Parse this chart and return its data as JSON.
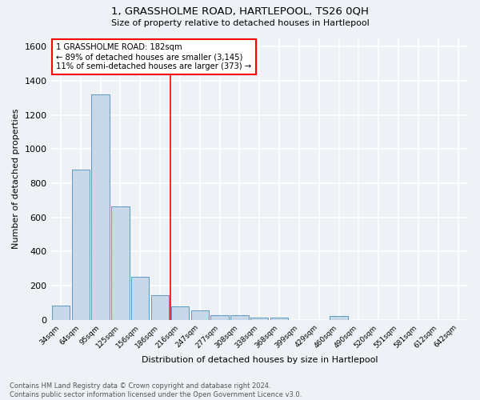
{
  "title": "1, GRASSHOLME ROAD, HARTLEPOOL, TS26 0QH",
  "subtitle": "Size of property relative to detached houses in Hartlepool",
  "xlabel": "Distribution of detached houses by size in Hartlepool",
  "ylabel": "Number of detached properties",
  "bar_labels": [
    "34sqm",
    "64sqm",
    "95sqm",
    "125sqm",
    "156sqm",
    "186sqm",
    "216sqm",
    "247sqm",
    "277sqm",
    "308sqm",
    "338sqm",
    "368sqm",
    "399sqm",
    "429sqm",
    "460sqm",
    "490sqm",
    "520sqm",
    "551sqm",
    "581sqm",
    "612sqm",
    "642sqm"
  ],
  "bar_values": [
    85,
    880,
    1320,
    665,
    250,
    145,
    80,
    55,
    25,
    25,
    15,
    15,
    0,
    0,
    20,
    0,
    0,
    0,
    0,
    0,
    0
  ],
  "bar_color": "#c8d8e8",
  "bar_edge_color": "#5a9abf",
  "vline_x": 5.5,
  "vline_color": "red",
  "annotation_text": "1 GRASSHOLME ROAD: 182sqm\n← 89% of detached houses are smaller (3,145)\n11% of semi-detached houses are larger (373) →",
  "annotation_box_color": "white",
  "annotation_box_edge": "red",
  "ylim": [
    0,
    1650
  ],
  "yticks": [
    0,
    200,
    400,
    600,
    800,
    1000,
    1200,
    1400,
    1600
  ],
  "footer_line1": "Contains HM Land Registry data © Crown copyright and database right 2024.",
  "footer_line2": "Contains public sector information licensed under the Open Government Licence v3.0.",
  "bg_color": "#eef2f7",
  "grid_color": "white"
}
